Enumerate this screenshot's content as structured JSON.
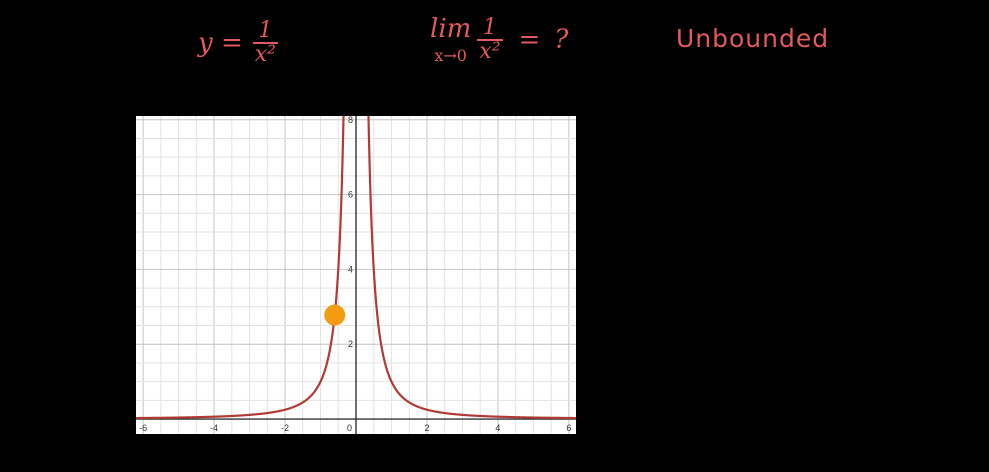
{
  "annotations": {
    "equation": {
      "lhs": "y =",
      "numerator": "1",
      "denominator": "x²"
    },
    "limit": {
      "word": "lim",
      "subscript": "x→0",
      "numerator": "1",
      "denominator": "x²",
      "equals": "=",
      "result": "?"
    },
    "conclusion": "Unbounded"
  },
  "colors": {
    "background": "#000000",
    "ink": "#e25a5a",
    "curve": "#b03a36",
    "point": "#f39c12",
    "grid_minor": "#e3e3e3",
    "grid_major": "#c4c4c4",
    "axis": "#333333"
  },
  "chart_data": {
    "type": "line",
    "function": "y = 1/x^2",
    "xlim": [
      -6.2,
      6.2
    ],
    "ylim": [
      -0.4,
      8.1
    ],
    "x_ticks": [
      -6,
      -4,
      -2,
      0,
      2,
      4,
      6
    ],
    "x_tick_labels": [
      "-6",
      "-4",
      "-2",
      "0",
      "2",
      "4",
      "6"
    ],
    "y_ticks": [
      2,
      4,
      6,
      8
    ],
    "y_tick_labels": [
      "2",
      "4",
      "6",
      "8"
    ],
    "minor_step": 0.5,
    "major_step": 2,
    "grid": true,
    "highlight_point": {
      "x": -0.6,
      "y": 2.78
    }
  }
}
